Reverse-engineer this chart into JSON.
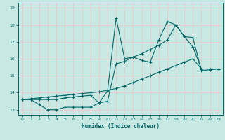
{
  "xlabel": "Humidex (Indice chaleur)",
  "xlim": [
    -0.5,
    23.5
  ],
  "ylim": [
    12.7,
    19.3
  ],
  "yticks": [
    13,
    14,
    15,
    16,
    17,
    18,
    19
  ],
  "xticks": [
    0,
    1,
    2,
    3,
    4,
    5,
    6,
    7,
    8,
    9,
    10,
    11,
    12,
    13,
    14,
    15,
    16,
    17,
    18,
    19,
    20,
    21,
    22,
    23
  ],
  "bg_color": "#c8e8e4",
  "line_color": "#006666",
  "grid_color": "#e8c8c8",
  "line1_x": [
    0,
    1,
    2,
    3,
    4,
    5,
    6,
    7,
    8,
    9,
    10,
    11,
    12,
    13,
    14,
    15,
    16,
    17,
    18,
    19,
    20,
    21,
    22,
    23
  ],
  "line1_y": [
    13.6,
    13.6,
    13.3,
    13.0,
    13.0,
    13.15,
    13.15,
    13.15,
    13.15,
    13.4,
    14.1,
    18.4,
    16.0,
    16.1,
    15.9,
    15.8,
    17.1,
    18.2,
    18.0,
    17.3,
    16.7,
    15.4,
    15.4,
    15.4
  ],
  "line2_x": [
    0,
    1,
    2,
    3,
    4,
    5,
    6,
    7,
    8,
    9,
    10,
    11,
    12,
    13,
    14,
    15,
    16,
    17,
    18,
    19,
    20,
    21,
    22,
    23
  ],
  "line2_y": [
    13.6,
    13.6,
    13.6,
    13.6,
    13.6,
    13.7,
    13.75,
    13.8,
    13.85,
    13.4,
    13.5,
    15.7,
    15.85,
    16.1,
    16.3,
    16.55,
    16.8,
    17.1,
    18.0,
    17.3,
    17.25,
    15.3,
    15.35,
    15.4
  ],
  "line3_x": [
    0,
    1,
    2,
    3,
    4,
    5,
    6,
    7,
    8,
    9,
    10,
    11,
    12,
    13,
    14,
    15,
    16,
    17,
    18,
    19,
    20,
    21,
    22,
    23
  ],
  "line3_y": [
    13.6,
    13.65,
    13.7,
    13.75,
    13.8,
    13.85,
    13.9,
    13.95,
    14.0,
    14.05,
    14.15,
    14.25,
    14.4,
    14.6,
    14.8,
    15.0,
    15.2,
    15.4,
    15.6,
    15.8,
    16.0,
    15.4,
    15.4,
    15.4
  ]
}
